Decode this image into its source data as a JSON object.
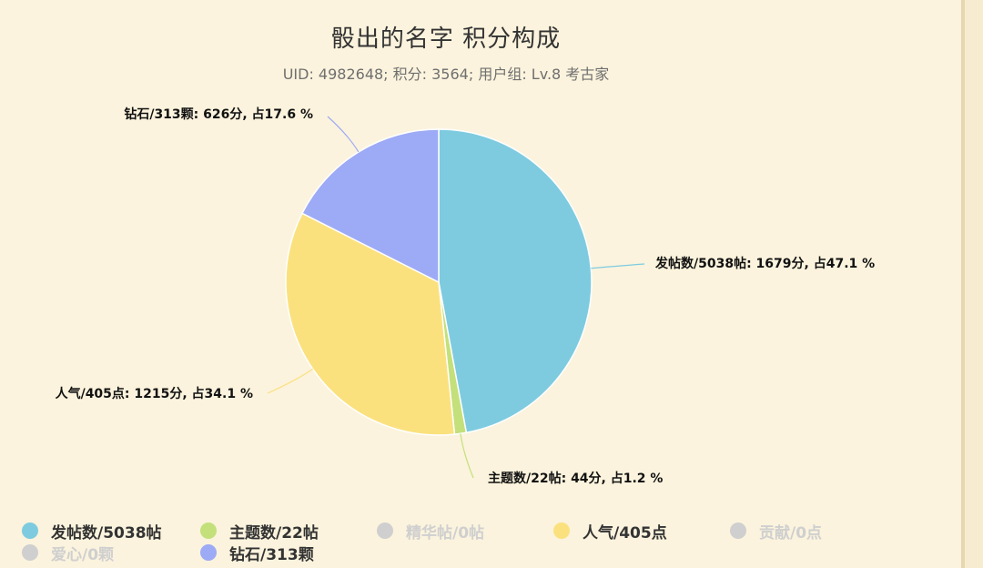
{
  "header": {
    "title": "骰出的名字 积分构成",
    "subtitle": "UID: 4982648; 积分: 3564; 用户组: Lv.8 考古家"
  },
  "chart_data": {
    "type": "pie",
    "title": "骰出的名字 积分构成",
    "subtitle": "UID: 4982648; 积分: 3564; 用户组: Lv.8 考古家",
    "slices": [
      {
        "name": "发帖数/5038帖",
        "value": 1679,
        "percent": 47.1,
        "label": "发帖数/5038帖: 1679分, 占47.1 %",
        "color": "#7ecbe0"
      },
      {
        "name": "主题数/22帖",
        "value": 44,
        "percent": 1.2,
        "label": "主题数/22帖: 44分, 占1.2 %",
        "color": "#c3e07a"
      },
      {
        "name": "精华帖/0帖",
        "value": 0,
        "percent": 0,
        "label": "",
        "color": "#cfcfcf"
      },
      {
        "name": "人气/405点",
        "value": 1215,
        "percent": 34.1,
        "label": "人气/405点: 1215分, 占34.1 %",
        "color": "#fbe17e"
      },
      {
        "name": "贡献/0点",
        "value": 0,
        "percent": 0,
        "label": "",
        "color": "#cfcfcf"
      },
      {
        "name": "爱心/0颗",
        "value": 0,
        "percent": 0,
        "label": "",
        "color": "#cfcfcf"
      },
      {
        "name": "钻石/313颗",
        "value": 626,
        "percent": 17.6,
        "label": "钻石/313颗: 626分, 占17.6 %",
        "color": "#9daaf5"
      }
    ],
    "legend": [
      {
        "name": "发帖数/5038帖",
        "color": "#7ecbe0",
        "active": true
      },
      {
        "name": "主题数/22帖",
        "color": "#c3e07a",
        "active": true
      },
      {
        "name": "精华帖/0帖",
        "color": "#cfcfcf",
        "active": false
      },
      {
        "name": "人气/405点",
        "color": "#fbe17e",
        "active": true
      },
      {
        "name": "贡献/0点",
        "color": "#cfcfcf",
        "active": false
      },
      {
        "name": "爱心/0颗",
        "color": "#cfcfcf",
        "active": false
      },
      {
        "name": "钻石/313颗",
        "color": "#9daaf5",
        "active": true
      }
    ],
    "legend_position": "bottom"
  }
}
